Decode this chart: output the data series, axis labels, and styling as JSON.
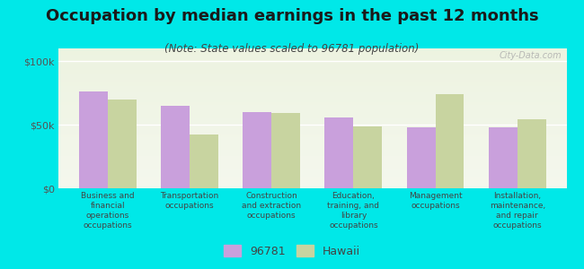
{
  "title": "Occupation by median earnings in the past 12 months",
  "subtitle": "(Note: State values scaled to 96781 population)",
  "background_color": "#00e8e8",
  "plot_bg_top": "#e8f0d8",
  "plot_bg_bottom": "#f5f8ee",
  "categories": [
    "Business and\nfinancial\noperations\noccupations",
    "Transportation\noccupations",
    "Construction\nand extraction\noccupations",
    "Education,\ntraining, and\nlibrary\noccupations",
    "Management\noccupations",
    "Installation,\nmaintenance,\nand repair\noccupations"
  ],
  "values_96781": [
    76000,
    65000,
    60000,
    56000,
    48000,
    48000
  ],
  "values_hawaii": [
    70000,
    42000,
    59000,
    49000,
    74000,
    54000
  ],
  "color_96781": "#c9a0dc",
  "color_hawaii": "#c8d4a0",
  "ylim": [
    0,
    110000
  ],
  "yticks": [
    0,
    50000,
    100000
  ],
  "ytick_labels": [
    "$0",
    "$50k",
    "$100k"
  ],
  "legend_labels": [
    "96781",
    "Hawaii"
  ],
  "watermark": "City-Data.com",
  "bar_width": 0.35,
  "title_fontsize": 13,
  "subtitle_fontsize": 8.5
}
